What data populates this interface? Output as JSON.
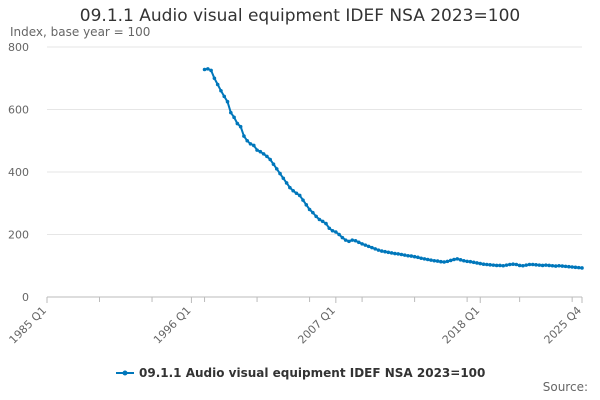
{
  "chart_data": {
    "type": "line",
    "title": "09.1.1 Audio visual equipment IDEF NSA 2023=100",
    "ylabel": "Index, base year = 100",
    "xlabel": "",
    "ylim": [
      0,
      800
    ],
    "yticks": [
      0,
      200,
      400,
      600,
      800
    ],
    "x_range_quarters": [
      0,
      163
    ],
    "xticks": [
      {
        "label": "1985 Q1",
        "q": 0
      },
      {
        "label": "1996 Q1",
        "q": 44
      },
      {
        "label": "2007 Q1",
        "q": 88
      },
      {
        "label": "2018 Q1",
        "q": 132
      },
      {
        "label": "2025 Q4",
        "q": 163
      }
    ],
    "legend": "bottom-center",
    "color": "#0077bb",
    "series": [
      {
        "name": "09.1.1 Audio visual equipment IDEF NSA 2023=100",
        "x": [
          48,
          49,
          50,
          51,
          52,
          53,
          54,
          55,
          56,
          57,
          58,
          59,
          60,
          61,
          62,
          63,
          64,
          65,
          66,
          67,
          68,
          69,
          70,
          71,
          72,
          73,
          74,
          75,
          76,
          77,
          78,
          79,
          80,
          81,
          82,
          83,
          84,
          85,
          86,
          87,
          88,
          89,
          90,
          91,
          92,
          93,
          94,
          95,
          96,
          97,
          98,
          99,
          100,
          101,
          102,
          103,
          104,
          105,
          106,
          107,
          108,
          109,
          110,
          111,
          112,
          113,
          114,
          115,
          116,
          117,
          118,
          119,
          120,
          121,
          122,
          123,
          124,
          125,
          126,
          127,
          128,
          129,
          130,
          131,
          132,
          133,
          134,
          135,
          136,
          137,
          138,
          139,
          140,
          141,
          142,
          143,
          144,
          145,
          146,
          147,
          148,
          149,
          150,
          151,
          152,
          153,
          154,
          155,
          156,
          157,
          158,
          159,
          160,
          161,
          162,
          163
        ],
        "values": [
          728,
          730,
          725,
          700,
          680,
          660,
          642,
          625,
          590,
          575,
          555,
          545,
          515,
          500,
          490,
          485,
          470,
          465,
          458,
          450,
          440,
          425,
          410,
          395,
          380,
          365,
          350,
          340,
          332,
          325,
          310,
          295,
          280,
          270,
          258,
          248,
          242,
          235,
          220,
          212,
          208,
          200,
          190,
          182,
          178,
          182,
          180,
          175,
          170,
          166,
          162,
          158,
          154,
          150,
          147,
          145,
          143,
          141,
          139,
          138,
          136,
          134,
          132,
          131,
          129,
          127,
          124,
          122,
          120,
          118,
          116,
          115,
          113,
          112,
          114,
          117,
          120,
          122,
          119,
          116,
          114,
          113,
          111,
          109,
          107,
          105,
          104,
          103,
          102,
          101,
          101,
          100,
          102,
          104,
          105,
          104,
          101,
          100,
          102,
          104,
          104,
          103,
          102,
          101,
          102,
          101,
          100,
          99,
          100,
          99,
          98,
          97,
          96,
          95,
          94,
          93
        ]
      }
    ]
  },
  "source_label": "Source:"
}
